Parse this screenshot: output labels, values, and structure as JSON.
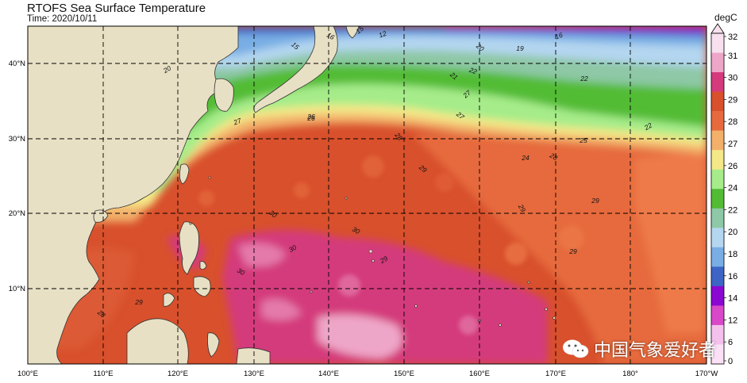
{
  "map": {
    "title": "RTOFS Sea Surface Temperature",
    "subtitle": "Time: 2020/10/11",
    "lon_labels": [
      "100°E",
      "110°E",
      "120°E",
      "130°E",
      "140°E",
      "150°E",
      "160°E",
      "170°E",
      "180°",
      "170°W"
    ],
    "lat_labels": [
      "40°N",
      "30°N",
      "20°N",
      "10°N"
    ],
    "colorbar": {
      "unit": "degC",
      "ticks": [
        "32",
        "31",
        "30",
        "29",
        "28",
        "27",
        "26",
        "24",
        "22",
        "20",
        "18",
        "16",
        "14",
        "12",
        "6",
        "0"
      ],
      "colors": [
        "#f8e0ee",
        "#eea6c8",
        "#d43a7c",
        "#d8502c",
        "#e66a3e",
        "#f2b06a",
        "#f4e888",
        "#a6ec8a",
        "#52bc34",
        "#8ec8a6",
        "#b4d6f0",
        "#78aee4",
        "#3e64c6",
        "#8a08d2",
        "#d848c8",
        "#f4c0ec",
        "#fbe0f6"
      ]
    },
    "contour_labels": [
      "15",
      "12",
      "16",
      "20",
      "15",
      "16",
      "19",
      "20",
      "22",
      "21",
      "22",
      "27",
      "27",
      "25",
      "26",
      "22",
      "24",
      "28",
      "28",
      "29",
      "29",
      "29",
      "30",
      "30",
      "30",
      "30",
      "29",
      "29",
      "29",
      "28",
      "27",
      "26"
    ],
    "watermark": "中国气象爱好者"
  }
}
